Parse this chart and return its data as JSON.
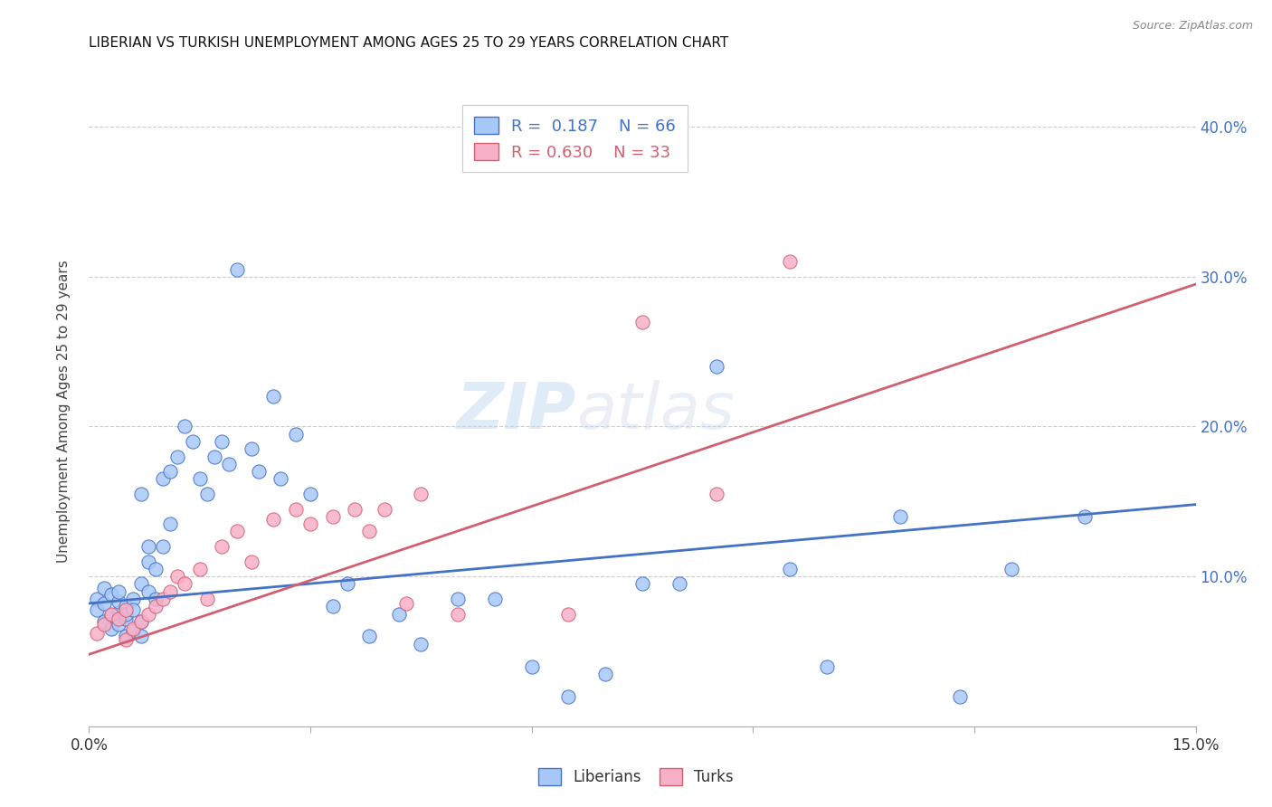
{
  "title": "LIBERIAN VS TURKISH UNEMPLOYMENT AMONG AGES 25 TO 29 YEARS CORRELATION CHART",
  "source": "Source: ZipAtlas.com",
  "ylabel": "Unemployment Among Ages 25 to 29 years",
  "xlim": [
    0.0,
    0.15
  ],
  "ylim": [
    0.0,
    0.42
  ],
  "xticks": [
    0.0,
    0.03,
    0.06,
    0.09,
    0.12,
    0.15
  ],
  "xticklabels": [
    "0.0%",
    "",
    "",
    "",
    "",
    "15.0%"
  ],
  "yticks_right": [
    0.0,
    0.1,
    0.2,
    0.3,
    0.4
  ],
  "yticklabels_right": [
    "",
    "10.0%",
    "20.0%",
    "30.0%",
    "40.0%"
  ],
  "liberian_R": "0.187",
  "liberian_N": "66",
  "turkish_R": "0.630",
  "turkish_N": "33",
  "liberian_color": "#a8c8f8",
  "turkish_color": "#f8b0c8",
  "liberian_line_color": "#4472c4",
  "turkish_line_color": "#d06070",
  "watermark_top": "ZIP",
  "watermark_bot": "atlas",
  "background_color": "#ffffff",
  "grid_color": "#cccccc",
  "liberian_scatter_x": [
    0.001,
    0.001,
    0.002,
    0.002,
    0.002,
    0.003,
    0.003,
    0.003,
    0.004,
    0.004,
    0.004,
    0.004,
    0.005,
    0.005,
    0.005,
    0.005,
    0.006,
    0.006,
    0.006,
    0.007,
    0.007,
    0.007,
    0.007,
    0.008,
    0.008,
    0.008,
    0.009,
    0.009,
    0.01,
    0.01,
    0.011,
    0.011,
    0.012,
    0.013,
    0.014,
    0.015,
    0.016,
    0.017,
    0.018,
    0.019,
    0.02,
    0.022,
    0.023,
    0.025,
    0.026,
    0.028,
    0.03,
    0.033,
    0.035,
    0.038,
    0.042,
    0.045,
    0.05,
    0.055,
    0.06,
    0.065,
    0.07,
    0.075,
    0.08,
    0.085,
    0.095,
    0.1,
    0.11,
    0.118,
    0.125,
    0.135
  ],
  "liberian_scatter_y": [
    0.085,
    0.078,
    0.092,
    0.07,
    0.082,
    0.065,
    0.088,
    0.074,
    0.076,
    0.083,
    0.09,
    0.068,
    0.072,
    0.08,
    0.06,
    0.075,
    0.085,
    0.064,
    0.078,
    0.07,
    0.06,
    0.095,
    0.155,
    0.12,
    0.11,
    0.09,
    0.105,
    0.085,
    0.12,
    0.165,
    0.135,
    0.17,
    0.18,
    0.2,
    0.19,
    0.165,
    0.155,
    0.18,
    0.19,
    0.175,
    0.305,
    0.185,
    0.17,
    0.22,
    0.165,
    0.195,
    0.155,
    0.08,
    0.095,
    0.06,
    0.075,
    0.055,
    0.085,
    0.085,
    0.04,
    0.02,
    0.035,
    0.095,
    0.095,
    0.24,
    0.105,
    0.04,
    0.14,
    0.02,
    0.105,
    0.14
  ],
  "turkish_scatter_x": [
    0.001,
    0.002,
    0.003,
    0.004,
    0.005,
    0.005,
    0.006,
    0.007,
    0.008,
    0.009,
    0.01,
    0.011,
    0.012,
    0.013,
    0.015,
    0.016,
    0.018,
    0.02,
    0.022,
    0.025,
    0.028,
    0.03,
    0.033,
    0.036,
    0.038,
    0.04,
    0.043,
    0.045,
    0.05,
    0.065,
    0.075,
    0.085,
    0.095
  ],
  "turkish_scatter_y": [
    0.062,
    0.068,
    0.075,
    0.072,
    0.058,
    0.078,
    0.065,
    0.07,
    0.075,
    0.08,
    0.085,
    0.09,
    0.1,
    0.095,
    0.105,
    0.085,
    0.12,
    0.13,
    0.11,
    0.138,
    0.145,
    0.135,
    0.14,
    0.145,
    0.13,
    0.145,
    0.082,
    0.155,
    0.075,
    0.075,
    0.27,
    0.155,
    0.31
  ],
  "liberian_trend_x": [
    0.0,
    0.15
  ],
  "liberian_trend_y": [
    0.082,
    0.148
  ],
  "turkish_trend_x": [
    0.0,
    0.15
  ],
  "turkish_trend_y": [
    0.048,
    0.295
  ]
}
